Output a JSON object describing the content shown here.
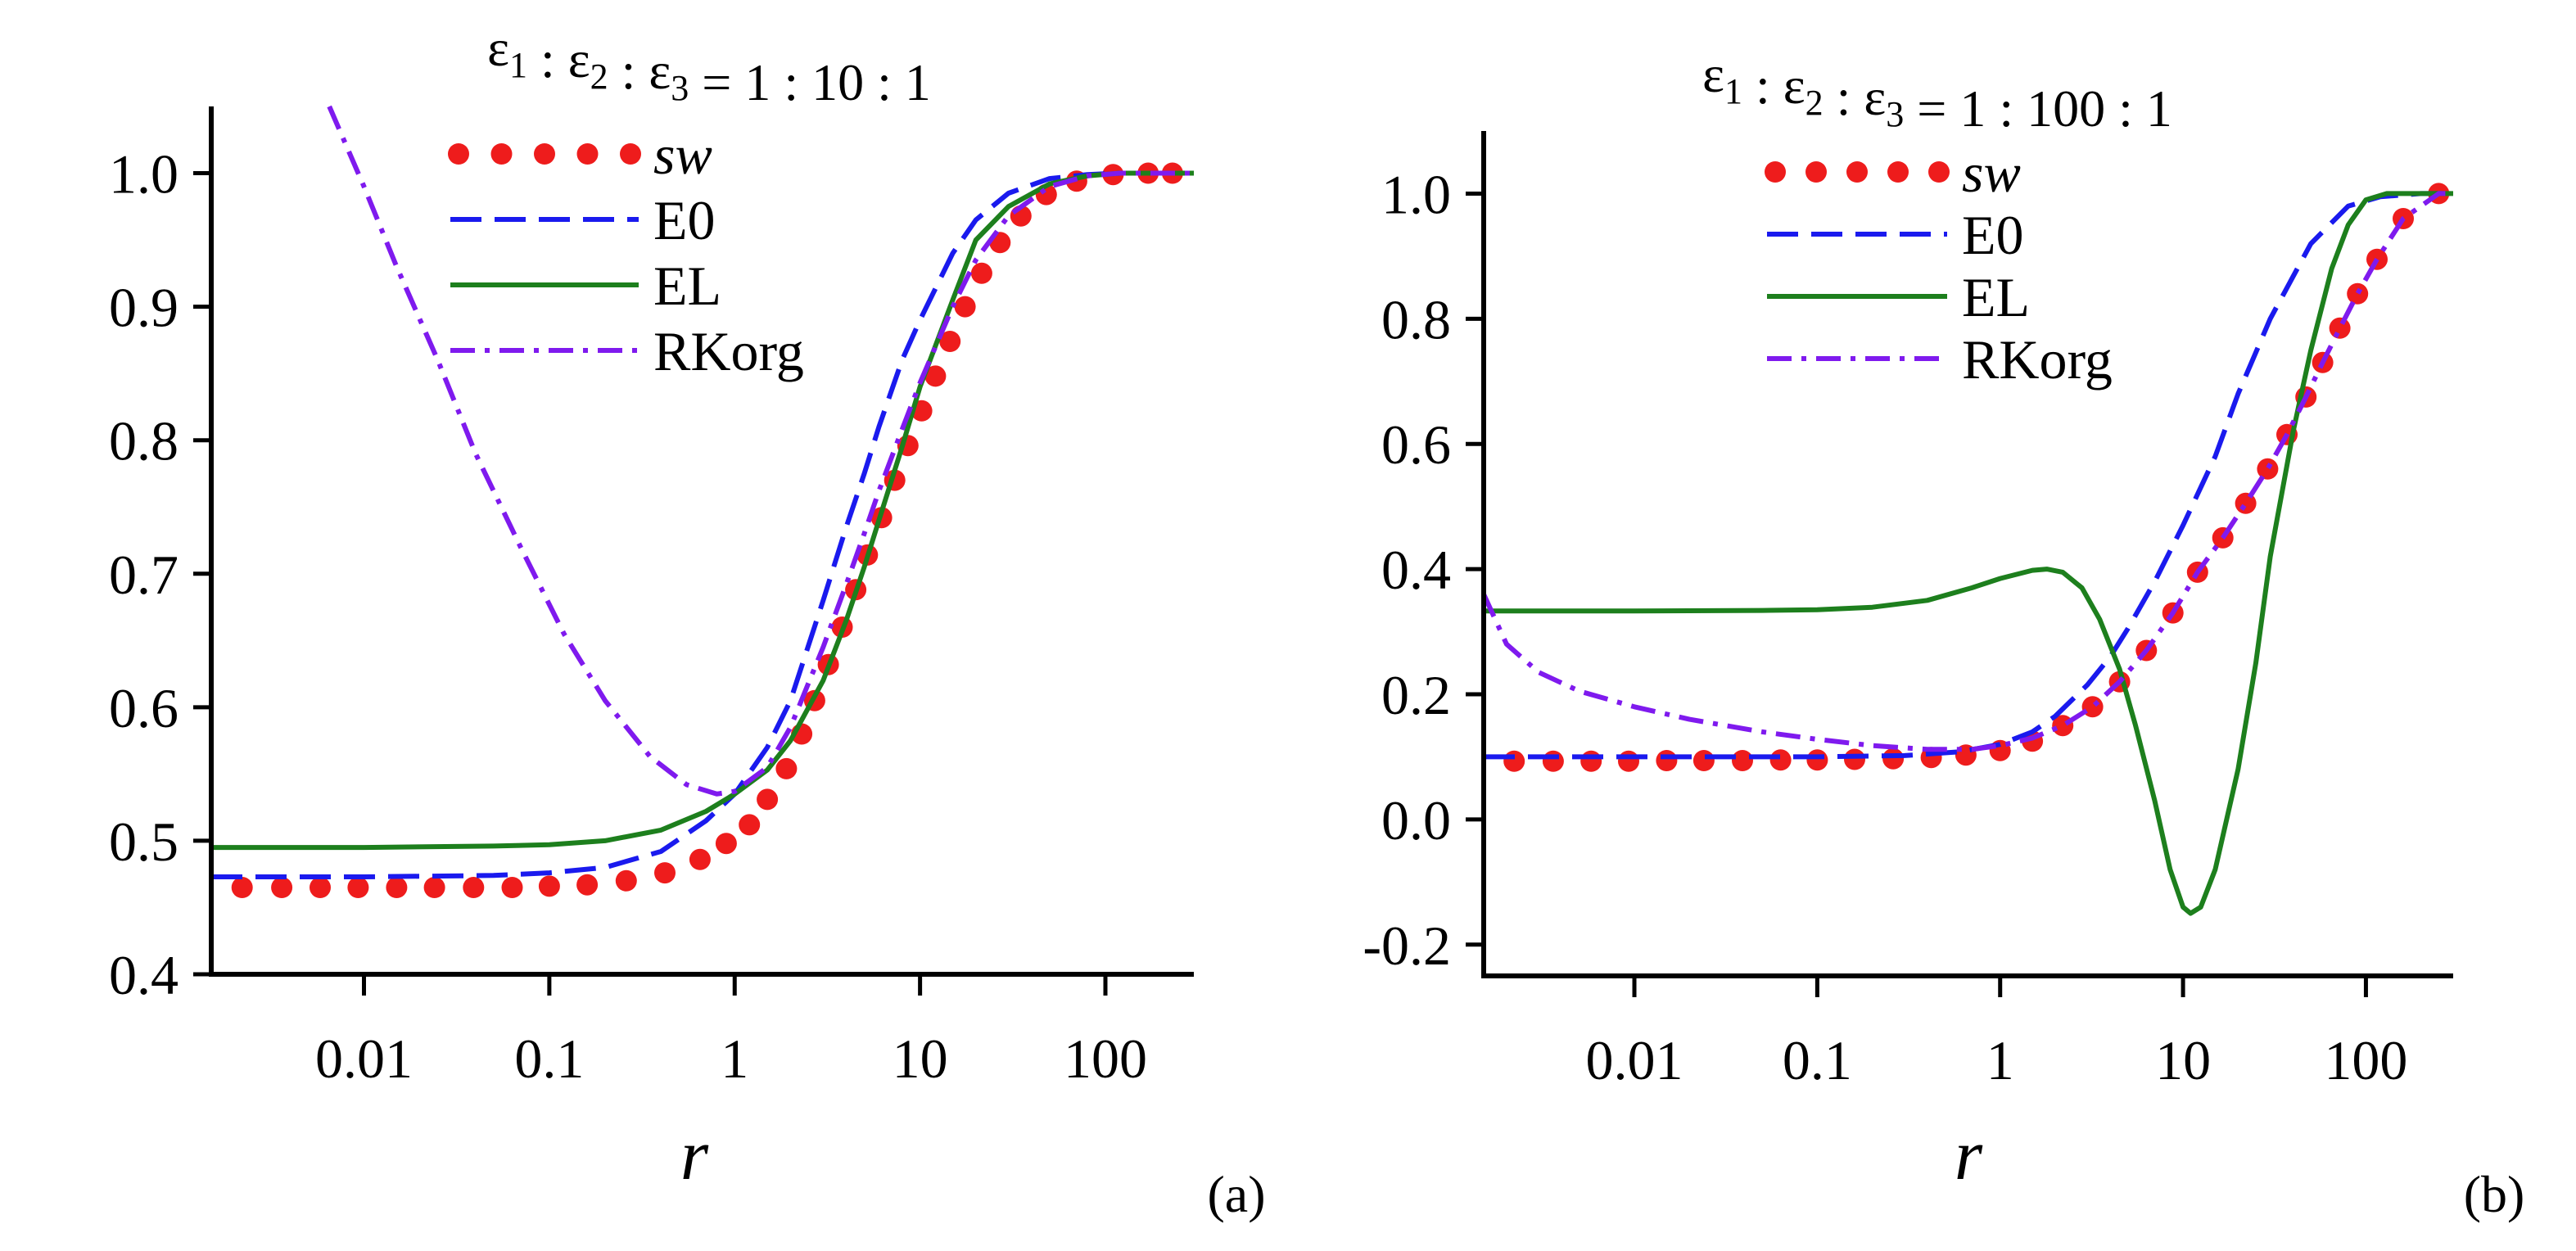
{
  "chart_data": [
    {
      "type": "line",
      "panel_label": "(a)",
      "title": "ε1 : ε2 : ε3 = 1 : 10 : 1",
      "title_parts": {
        "e": "ε",
        "s1": "1",
        "s2": "2",
        "s3": "3",
        "ratio": "= 1 : 10 : 1"
      },
      "xlabel": "r",
      "ylabel": "",
      "xscale": "log",
      "xlim": [
        0.0015,
        300
      ],
      "ylim": [
        0.4,
        1.05
      ],
      "xticks": [
        {
          "value": 0.01,
          "label": "0.01"
        },
        {
          "value": 0.1,
          "label": "0.1"
        },
        {
          "value": 1,
          "label": "1"
        },
        {
          "value": 10,
          "label": "10"
        },
        {
          "value": 100,
          "label": "100"
        }
      ],
      "yticks": [
        {
          "value": 0.4,
          "label": "0.4"
        },
        {
          "value": 0.5,
          "label": "0.5"
        },
        {
          "value": 0.6,
          "label": "0.6"
        },
        {
          "value": 0.7,
          "label": "0.7"
        },
        {
          "value": 0.8,
          "label": "0.8"
        },
        {
          "value": 0.9,
          "label": "0.9"
        },
        {
          "value": 1.0,
          "label": "1.0"
        }
      ],
      "legend_position": "top-center",
      "series": [
        {
          "name": "sw",
          "style": "dots",
          "color": "#ee1c1c",
          "x": [
            0.0022,
            0.0036,
            0.0058,
            0.0093,
            0.015,
            0.024,
            0.039,
            0.063,
            0.1,
            0.16,
            0.26,
            0.42,
            0.65,
            0.9,
            1.2,
            1.5,
            1.9,
            2.3,
            2.7,
            3.2,
            3.8,
            4.5,
            5.2,
            6.2,
            7.3,
            8.6,
            10.2,
            12.1,
            14.5,
            17.5,
            21.5,
            27,
            35,
            48,
            70,
            110,
            170,
            230
          ],
          "y": [
            0.465,
            0.465,
            0.465,
            0.465,
            0.465,
            0.465,
            0.465,
            0.465,
            0.466,
            0.467,
            0.47,
            0.476,
            0.486,
            0.498,
            0.512,
            0.531,
            0.554,
            0.58,
            0.605,
            0.632,
            0.66,
            0.688,
            0.714,
            0.742,
            0.77,
            0.796,
            0.822,
            0.848,
            0.874,
            0.9,
            0.925,
            0.948,
            0.968,
            0.984,
            0.994,
            0.999,
            1.0,
            1.0
          ]
        },
        {
          "name": "E0",
          "style": "dashed",
          "color": "#1a1aee",
          "x": [
            0.0015,
            0.01,
            0.05,
            0.1,
            0.2,
            0.4,
            0.7,
            1.0,
            1.5,
            2.0,
            3.0,
            4.0,
            5.0,
            6.0,
            8.0,
            10.0,
            15.0,
            20.0,
            30.0,
            50.0,
            80.0,
            120.0,
            200.0,
            300.0
          ],
          "y": [
            0.473,
            0.473,
            0.474,
            0.476,
            0.48,
            0.492,
            0.515,
            0.535,
            0.57,
            0.605,
            0.68,
            0.735,
            0.775,
            0.81,
            0.86,
            0.89,
            0.94,
            0.965,
            0.985,
            0.996,
            0.999,
            1.0,
            1.0,
            1.0
          ]
        },
        {
          "name": "EL",
          "style": "solid",
          "color": "#1d7f1d",
          "x": [
            0.0015,
            0.01,
            0.05,
            0.1,
            0.2,
            0.4,
            0.7,
            1.0,
            1.5,
            2.0,
            3.0,
            4.0,
            5.0,
            6.0,
            8.0,
            10.0,
            15.0,
            20.0,
            30.0,
            50.0,
            80.0,
            120.0,
            200.0,
            300.0
          ],
          "y": [
            0.495,
            0.495,
            0.496,
            0.497,
            0.5,
            0.508,
            0.522,
            0.535,
            0.553,
            0.575,
            0.62,
            0.665,
            0.705,
            0.74,
            0.795,
            0.84,
            0.905,
            0.95,
            0.975,
            0.992,
            0.998,
            1.0,
            1.0,
            1.0
          ]
        },
        {
          "name": "RKorg",
          "style": "dashdot",
          "color": "#7f1aee",
          "x": [
            0.0065,
            0.01,
            0.015,
            0.025,
            0.04,
            0.07,
            0.12,
            0.2,
            0.35,
            0.55,
            0.8,
            1.0,
            1.5,
            2.0,
            3.0,
            4.0,
            5.0,
            6.0,
            8.0,
            10.0,
            15.0,
            20.0,
            30.0,
            50.0,
            80.0,
            120.0,
            200.0,
            300.0
          ],
          "y": [
            1.05,
            0.99,
            0.93,
            0.86,
            0.79,
            0.72,
            0.655,
            0.605,
            0.563,
            0.542,
            0.535,
            0.537,
            0.555,
            0.585,
            0.645,
            0.692,
            0.73,
            0.762,
            0.808,
            0.843,
            0.9,
            0.935,
            0.968,
            0.99,
            0.998,
            1.0,
            1.0,
            1.0
          ]
        }
      ]
    },
    {
      "type": "line",
      "panel_label": "(b)",
      "title": "ε1 : ε2 : ε3 = 1 : 100 : 1",
      "title_parts": {
        "e": "ε",
        "s1": "1",
        "s2": "2",
        "s3": "3",
        "ratio": "= 1 : 100 : 1"
      },
      "xlabel": "r",
      "ylabel": "",
      "xscale": "log",
      "xlim": [
        0.0015,
        300
      ],
      "ylim": [
        -0.25,
        1.1
      ],
      "xticks": [
        {
          "value": 0.01,
          "label": "0.01"
        },
        {
          "value": 0.1,
          "label": "0.1"
        },
        {
          "value": 1,
          "label": "1"
        },
        {
          "value": 10,
          "label": "10"
        },
        {
          "value": 100,
          "label": "100"
        }
      ],
      "yticks": [
        {
          "value": -0.2,
          "label": "-0.2"
        },
        {
          "value": 0.0,
          "label": "0.0"
        },
        {
          "value": 0.2,
          "label": "0.2"
        },
        {
          "value": 0.4,
          "label": "0.4"
        },
        {
          "value": 0.6,
          "label": "0.6"
        },
        {
          "value": 0.8,
          "label": "0.8"
        },
        {
          "value": 1.0,
          "label": "1.0"
        }
      ],
      "legend_position": "top-center",
      "series": [
        {
          "name": "sw",
          "style": "dots",
          "color": "#ee1c1c",
          "x": [
            0.0022,
            0.0036,
            0.0058,
            0.0093,
            0.015,
            0.024,
            0.039,
            0.063,
            0.1,
            0.16,
            0.26,
            0.42,
            0.65,
            1.0,
            1.5,
            2.2,
            3.2,
            4.5,
            6.3,
            8.8,
            12.0,
            16.5,
            22.0,
            29.0,
            37.0,
            47.0,
            58.0,
            72.0,
            90.0,
            115.0,
            160.0,
            250.0
          ],
          "y": [
            0.093,
            0.093,
            0.093,
            0.093,
            0.094,
            0.094,
            0.094,
            0.095,
            0.095,
            0.096,
            0.097,
            0.099,
            0.103,
            0.11,
            0.125,
            0.15,
            0.18,
            0.22,
            0.27,
            0.33,
            0.395,
            0.45,
            0.505,
            0.56,
            0.615,
            0.675,
            0.73,
            0.785,
            0.84,
            0.895,
            0.96,
            1.0
          ]
        },
        {
          "name": "E0",
          "style": "dashed",
          "color": "#1a1aee",
          "x": [
            0.0015,
            0.01,
            0.1,
            0.3,
            0.6,
            1.0,
            1.5,
            2.0,
            3.0,
            4.0,
            5.0,
            7.0,
            10.0,
            15.0,
            20.0,
            30.0,
            50.0,
            80.0,
            120.0,
            200.0,
            300.0
          ],
          "y": [
            0.1,
            0.1,
            0.1,
            0.102,
            0.108,
            0.12,
            0.14,
            0.165,
            0.215,
            0.26,
            0.305,
            0.38,
            0.47,
            0.58,
            0.68,
            0.8,
            0.92,
            0.98,
            0.995,
            1.0,
            1.0
          ]
        },
        {
          "name": "EL",
          "style": "solid",
          "color": "#1d7f1d",
          "x": [
            0.0015,
            0.01,
            0.05,
            0.1,
            0.2,
            0.4,
            0.7,
            1.0,
            1.5,
            1.8,
            2.2,
            2.8,
            3.5,
            4.5,
            5.5,
            7.0,
            8.5,
            10.0,
            11.0,
            12.5,
            15.0,
            20.0,
            25.0,
            30.0,
            40.0,
            50.0,
            65.0,
            80.0,
            100.0,
            130.0,
            180.0,
            300.0
          ],
          "y": [
            0.333,
            0.333,
            0.334,
            0.335,
            0.339,
            0.35,
            0.37,
            0.385,
            0.398,
            0.4,
            0.395,
            0.37,
            0.32,
            0.24,
            0.15,
            0.03,
            -0.08,
            -0.14,
            -0.15,
            -0.14,
            -0.08,
            0.08,
            0.25,
            0.42,
            0.62,
            0.75,
            0.88,
            0.95,
            0.99,
            1.0,
            1.0,
            1.0
          ]
        },
        {
          "name": "RKorg",
          "style": "dashdot",
          "color": "#7f1aee",
          "x": [
            0.0015,
            0.002,
            0.003,
            0.005,
            0.01,
            0.02,
            0.05,
            0.1,
            0.2,
            0.4,
            0.7,
            1.0,
            1.5,
            2.2,
            3.2,
            4.5,
            6.3,
            8.8,
            12.0,
            16.5,
            22.0,
            29.0,
            37.0,
            47.0,
            58.0,
            72.0,
            90.0,
            115.0,
            160.0,
            250.0,
            300.0
          ],
          "y": [
            0.36,
            0.28,
            0.235,
            0.205,
            0.18,
            0.16,
            0.14,
            0.128,
            0.118,
            0.112,
            0.112,
            0.118,
            0.13,
            0.15,
            0.18,
            0.22,
            0.27,
            0.33,
            0.395,
            0.45,
            0.505,
            0.56,
            0.615,
            0.675,
            0.73,
            0.785,
            0.84,
            0.895,
            0.96,
            1.0,
            1.0
          ]
        }
      ]
    }
  ]
}
